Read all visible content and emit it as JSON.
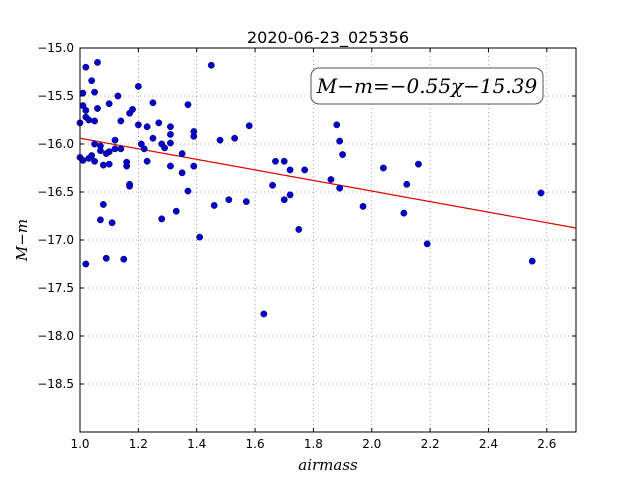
{
  "chart_data": {
    "type": "scatter",
    "title": "2020-06-23_025356",
    "xlabel": "airmass",
    "ylabel": "M−m",
    "xlim": [
      1.0,
      2.7
    ],
    "ylim": [
      -19.0,
      -15.0
    ],
    "y_inverted": true,
    "grid": true,
    "x_ticks": [
      "1.0",
      "1.2",
      "1.4",
      "1.6",
      "1.8",
      "2.0",
      "2.2",
      "2.4",
      "2.6"
    ],
    "y_ticks": [
      "−15.0",
      "−15.5",
      "−16.0",
      "−16.5",
      "−17.0",
      "−17.5",
      "−18.0",
      "−18.5"
    ],
    "annotation": "M−m=−0.55χ−15.39",
    "point_color": "#0000cc",
    "fit_color": "#dd0000",
    "fit": {
      "slope": -0.55,
      "intercept": -15.39
    },
    "points": [
      [
        1.0,
        -15.78
      ],
      [
        1.0,
        -16.14
      ],
      [
        1.01,
        -15.47
      ],
      [
        1.01,
        -15.6
      ],
      [
        1.01,
        -16.17
      ],
      [
        1.02,
        -15.65
      ],
      [
        1.02,
        -15.72
      ],
      [
        1.02,
        -17.25
      ],
      [
        1.02,
        -15.2
      ],
      [
        1.03,
        -16.15
      ],
      [
        1.03,
        -15.75
      ],
      [
        1.04,
        -15.34
      ],
      [
        1.04,
        -16.12
      ],
      [
        1.05,
        -15.46
      ],
      [
        1.05,
        -15.76
      ],
      [
        1.05,
        -16.18
      ],
      [
        1.05,
        -16.0
      ],
      [
        1.06,
        -15.15
      ],
      [
        1.06,
        -15.63
      ],
      [
        1.07,
        -16.02
      ],
      [
        1.07,
        -16.07
      ],
      [
        1.07,
        -16.79
      ],
      [
        1.08,
        -16.22
      ],
      [
        1.08,
        -16.63
      ],
      [
        1.09,
        -16.1
      ],
      [
        1.09,
        -17.19
      ],
      [
        1.1,
        -15.58
      ],
      [
        1.1,
        -16.08
      ],
      [
        1.1,
        -16.21
      ],
      [
        1.11,
        -16.82
      ],
      [
        1.12,
        -15.96
      ],
      [
        1.12,
        -16.05
      ],
      [
        1.13,
        -15.5
      ],
      [
        1.14,
        -15.76
      ],
      [
        1.14,
        -16.05
      ],
      [
        1.15,
        -17.2
      ],
      [
        1.16,
        -16.23
      ],
      [
        1.16,
        -16.19
      ],
      [
        1.17,
        -15.68
      ],
      [
        1.17,
        -16.42
      ],
      [
        1.17,
        -16.44
      ],
      [
        1.18,
        -15.64
      ],
      [
        1.2,
        -15.8
      ],
      [
        1.2,
        -15.4
      ],
      [
        1.21,
        -16.0
      ],
      [
        1.22,
        -16.05
      ],
      [
        1.23,
        -15.82
      ],
      [
        1.23,
        -16.18
      ],
      [
        1.25,
        -15.57
      ],
      [
        1.25,
        -15.94
      ],
      [
        1.27,
        -15.78
      ],
      [
        1.28,
        -16.0
      ],
      [
        1.28,
        -16.78
      ],
      [
        1.29,
        -16.04
      ],
      [
        1.31,
        -15.82
      ],
      [
        1.31,
        -15.9
      ],
      [
        1.31,
        -15.99
      ],
      [
        1.31,
        -16.23
      ],
      [
        1.33,
        -16.7
      ],
      [
        1.35,
        -16.1
      ],
      [
        1.35,
        -16.3
      ],
      [
        1.37,
        -16.49
      ],
      [
        1.37,
        -15.59
      ],
      [
        1.39,
        -15.92
      ],
      [
        1.39,
        -16.23
      ],
      [
        1.39,
        -15.87
      ],
      [
        1.41,
        -16.97
      ],
      [
        1.45,
        -15.18
      ],
      [
        1.46,
        -16.64
      ],
      [
        1.48,
        -15.96
      ],
      [
        1.51,
        -16.58
      ],
      [
        1.53,
        -15.94
      ],
      [
        1.57,
        -16.6
      ],
      [
        1.58,
        -15.81
      ],
      [
        1.63,
        -17.77
      ],
      [
        1.66,
        -16.43
      ],
      [
        1.67,
        -16.18
      ],
      [
        1.7,
        -16.18
      ],
      [
        1.7,
        -16.58
      ],
      [
        1.72,
        -16.27
      ],
      [
        1.72,
        -16.53
      ],
      [
        1.75,
        -16.89
      ],
      [
        1.77,
        -16.27
      ],
      [
        1.86,
        -16.37
      ],
      [
        1.88,
        -15.8
      ],
      [
        1.89,
        -15.97
      ],
      [
        1.89,
        -16.46
      ],
      [
        1.9,
        -16.11
      ],
      [
        1.97,
        -16.65
      ],
      [
        2.04,
        -16.25
      ],
      [
        2.11,
        -16.72
      ],
      [
        2.12,
        -16.42
      ],
      [
        2.16,
        -16.21
      ],
      [
        2.19,
        -17.04
      ],
      [
        2.55,
        -17.22
      ],
      [
        2.58,
        -16.51
      ]
    ]
  }
}
